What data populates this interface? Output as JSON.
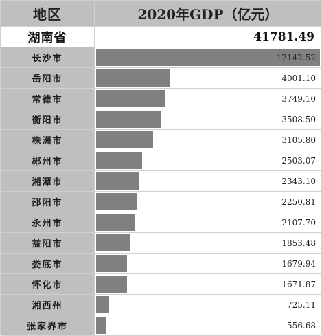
{
  "header": {
    "region_label": "地区",
    "value_label": "2020年GDP（亿元）"
  },
  "total": {
    "name": "湖南省",
    "value": "41781.49"
  },
  "chart_data": {
    "type": "bar",
    "orientation": "horizontal",
    "title": "2020年GDP（亿元）",
    "categories": [
      "长沙市",
      "岳阳市",
      "常德市",
      "衡阳市",
      "株洲市",
      "郴州市",
      "湘潭市",
      "邵阳市",
      "永州市",
      "益阳市",
      "娄底市",
      "怀化市",
      "湘西州",
      "张家界市"
    ],
    "values": [
      12142.52,
      4001.1,
      3749.1,
      3508.5,
      3105.8,
      2503.07,
      2343.1,
      2250.81,
      2107.7,
      1853.48,
      1679.94,
      1671.87,
      725.11,
      556.68
    ],
    "value_labels": [
      "12142.52",
      "4001.10",
      "3749.10",
      "3508.50",
      "3105.80",
      "2503.07",
      "2343.10",
      "2250.81",
      "2107.70",
      "1853.48",
      "1679.94",
      "1671.87",
      "725.11",
      "556.68"
    ],
    "xlim": [
      0,
      12142.52
    ],
    "bar_color": "#808080",
    "label_bg_color": "#bfbfbf"
  }
}
